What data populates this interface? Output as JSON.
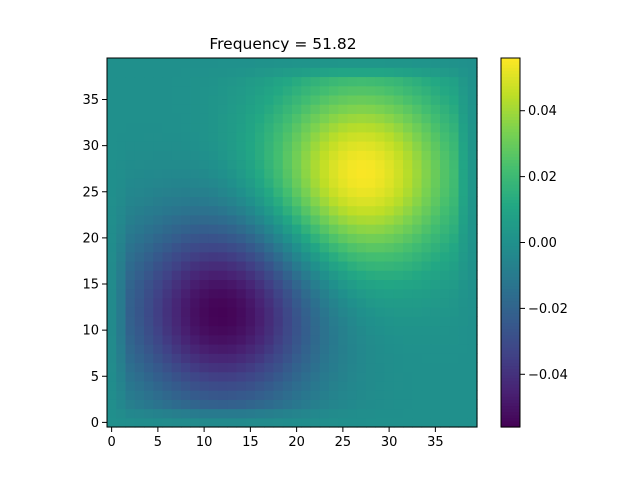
{
  "chart_data": {
    "type": "heatmap",
    "title": "Frequency = 51.82",
    "xlabel": "",
    "ylabel": "",
    "grid_size": [
      40,
      40
    ],
    "xlim": [
      -0.5,
      39.5
    ],
    "ylim": [
      -0.5,
      39.5
    ],
    "x_ticks": [
      0,
      5,
      10,
      15,
      20,
      25,
      30,
      35
    ],
    "x_tick_labels": [
      "0",
      "5",
      "10",
      "15",
      "20",
      "25",
      "30",
      "35"
    ],
    "y_ticks": [
      0,
      5,
      10,
      15,
      20,
      25,
      30,
      35
    ],
    "y_tick_labels": [
      "0",
      "5",
      "10",
      "15",
      "20",
      "25",
      "30",
      "35"
    ],
    "colormap": "viridis",
    "colorbar": {
      "min": -0.056,
      "max": 0.056,
      "ticks": [
        -0.04,
        -0.02,
        0.0,
        0.02,
        0.04
      ],
      "tick_labels": [
        "−0.04",
        "−0.02",
        "0.00",
        "0.02",
        "0.04"
      ]
    },
    "field_description": "Two-lobe mode: negative lobe centered near (12, 12), positive lobe centered near (27, 27); values near 0 at the boundary.",
    "field": {
      "base": 0.0,
      "lobes": [
        {
          "cx": 12,
          "cy": 12,
          "sigma": 7.2,
          "amplitude": -0.056
        },
        {
          "cx": 27,
          "cy": 27,
          "sigma": 7.2,
          "amplitude": 0.056
        }
      ],
      "edge_falloff": 2.5
    }
  }
}
